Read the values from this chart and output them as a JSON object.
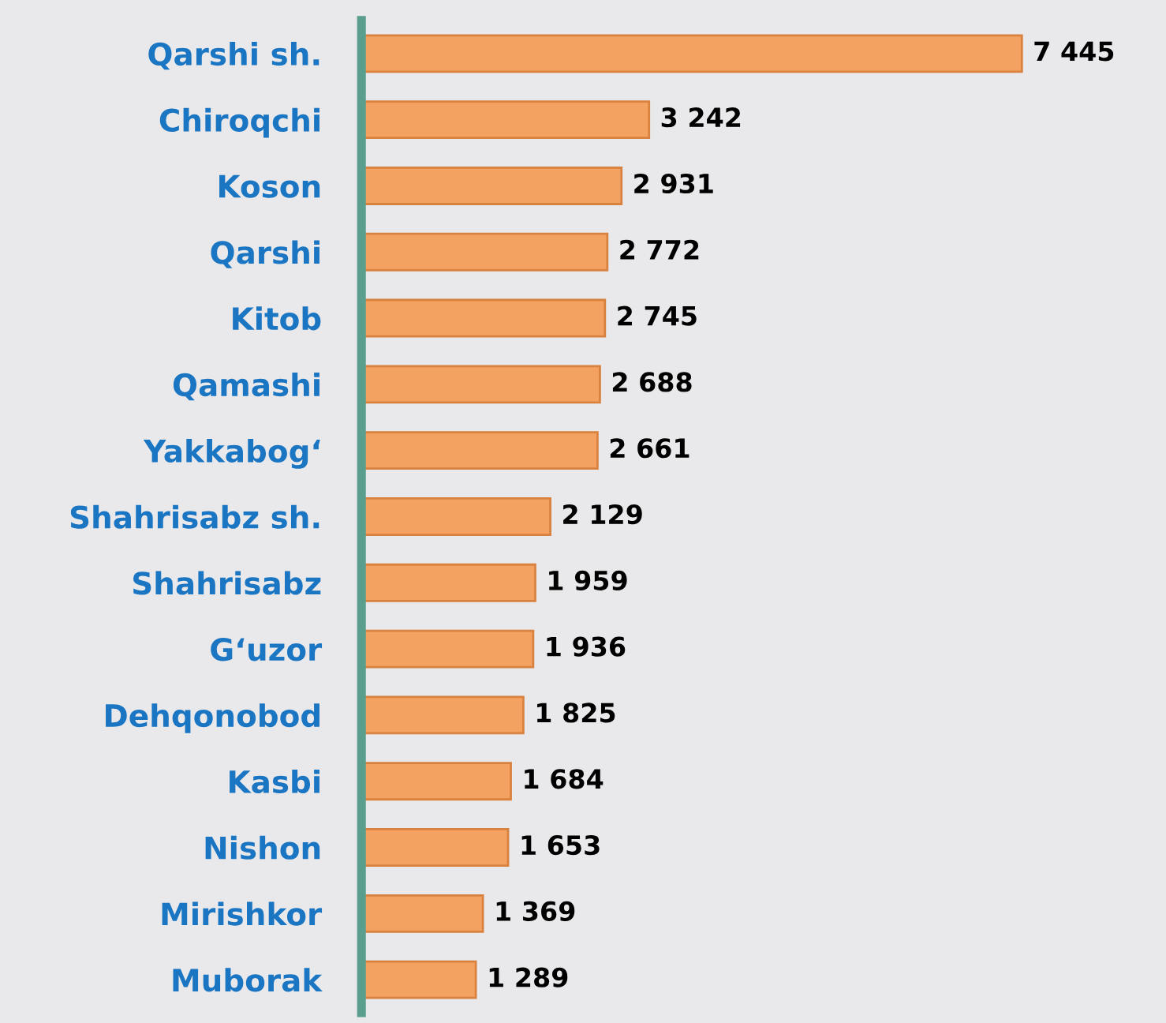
{
  "chart_data": {
    "type": "bar",
    "orientation": "horizontal",
    "categories": [
      "Qarshi sh.",
      "Chiroqchi",
      "Koson",
      "Qarshi",
      "Kitob",
      "Qamashi",
      "Yakkabog‘",
      "Shahrisabz sh.",
      "Shahrisabz",
      "G‘uzor",
      "Dehqonobod",
      "Kasbi",
      "Nishon",
      "Mirishkor",
      "Muborak"
    ],
    "values": [
      7445,
      3242,
      2931,
      2772,
      2745,
      2688,
      2661,
      2129,
      1959,
      1936,
      1825,
      1684,
      1653,
      1369,
      1289
    ],
    "value_labels": [
      "7 445",
      "3 242",
      "2 931",
      "2 772",
      "2 745",
      "2 688",
      "2 661",
      "2 129",
      "1 959",
      "1 936",
      "1 825",
      "1 684",
      "1 653",
      "1 369",
      "1 289"
    ],
    "color": "#f4a262",
    "grid": false,
    "legend": false
  }
}
